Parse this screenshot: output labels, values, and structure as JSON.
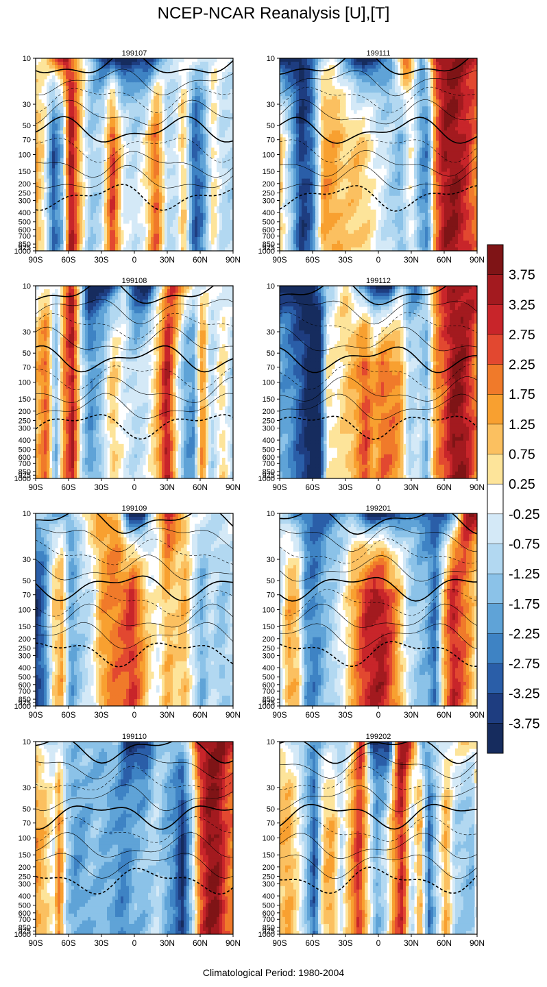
{
  "figure": {
    "title": "NCEP-NCAR Reanalysis [U],[T]",
    "footer": "Climatological Period: 1980-2004"
  },
  "chart_data": {
    "type": "heatmap",
    "variables": "[U] shaded anomaly, [T] contours",
    "x_ticks": [
      "90S",
      "60S",
      "30S",
      "0",
      "30N",
      "60N",
      "90N"
    ],
    "x_range": [
      -90,
      90
    ],
    "pressure_levels": [
      10,
      30,
      50,
      70,
      100,
      150,
      200,
      250,
      300,
      400,
      500,
      600,
      700,
      850,
      925,
      1000
    ],
    "colorbar": {
      "labels": [
        "3.75",
        "3.25",
        "2.75",
        "2.25",
        "1.75",
        "1.25",
        "0.75",
        "0.25",
        "-0.25",
        "-0.75",
        "-1.25",
        "-1.75",
        "-2.25",
        "-2.75",
        "-3.25",
        "-3.75"
      ],
      "colors": [
        "#7f1416",
        "#a31a1f",
        "#c8252a",
        "#e24830",
        "#f07a2a",
        "#f8a030",
        "#fbc060",
        "#fde49a",
        "#ffffff",
        "#d4e9f7",
        "#b2d8f1",
        "#8bc2e8",
        "#5fa3d7",
        "#3e83c4",
        "#2a5ea8",
        "#1e3d80",
        "#162c5e"
      ]
    },
    "panels": [
      {
        "label": "199107",
        "bands": [
          [
            -90,
            1.6
          ],
          [
            -82,
            0.4
          ],
          [
            -74,
            -2.8
          ],
          [
            -66,
            -1.4
          ],
          [
            -58,
            4.0
          ],
          [
            -48,
            0.8
          ],
          [
            -40,
            -1.0
          ],
          [
            -30,
            -0.6
          ],
          [
            -20,
            3.2
          ],
          [
            -10,
            0.0
          ],
          [
            0,
            -0.5
          ],
          [
            10,
            0.4
          ],
          [
            20,
            2.6
          ],
          [
            30,
            -0.6
          ],
          [
            38,
            -0.4
          ],
          [
            45,
            1.2
          ],
          [
            55,
            -3.0
          ],
          [
            63,
            -2.0
          ],
          [
            72,
            0.8
          ],
          [
            80,
            -0.6
          ],
          [
            90,
            -0.6
          ]
        ],
        "top": [
          [
            -90,
            0.0
          ],
          [
            -62,
            3.8
          ],
          [
            -45,
            0.0
          ],
          [
            -25,
            -4.0
          ],
          [
            -5,
            -4.0
          ],
          [
            12,
            -4.0
          ],
          [
            25,
            -1.5
          ],
          [
            40,
            0.0
          ],
          [
            90,
            0.0
          ]
        ]
      },
      {
        "label": "199111",
        "bands": [
          [
            -90,
            1.2
          ],
          [
            -80,
            -1.0
          ],
          [
            -70,
            -3.4
          ],
          [
            -60,
            -2.5
          ],
          [
            -50,
            1.8
          ],
          [
            -40,
            1.6
          ],
          [
            -30,
            1.0
          ],
          [
            -20,
            1.2
          ],
          [
            -10,
            0.8
          ],
          [
            0,
            0.0
          ],
          [
            10,
            -0.6
          ],
          [
            20,
            -1.4
          ],
          [
            30,
            0.4
          ],
          [
            38,
            -1.6
          ],
          [
            45,
            -2.2
          ],
          [
            52,
            2.2
          ],
          [
            60,
            3.8
          ],
          [
            70,
            4.0
          ],
          [
            80,
            3.2
          ],
          [
            90,
            2.0
          ]
        ],
        "top": [
          [
            -90,
            -4.0
          ],
          [
            -70,
            -4.0
          ],
          [
            -55,
            -1.0
          ],
          [
            -40,
            0.0
          ],
          [
            -20,
            -4.0
          ],
          [
            -5,
            -4.0
          ],
          [
            10,
            -2.0
          ],
          [
            25,
            3.0
          ],
          [
            40,
            -2.0
          ],
          [
            55,
            4.0
          ],
          [
            75,
            4.0
          ],
          [
            90,
            3.5
          ]
        ]
      },
      {
        "label": "199108",
        "bands": [
          [
            -90,
            1.2
          ],
          [
            -80,
            2.6
          ],
          [
            -72,
            -1.6
          ],
          [
            -64,
            2.0
          ],
          [
            -56,
            3.6
          ],
          [
            -48,
            -0.4
          ],
          [
            -40,
            -2.0
          ],
          [
            -30,
            -1.0
          ],
          [
            -20,
            1.2
          ],
          [
            -10,
            0.0
          ],
          [
            0,
            -0.6
          ],
          [
            10,
            -0.3
          ],
          [
            20,
            1.2
          ],
          [
            30,
            3.8
          ],
          [
            38,
            0.6
          ],
          [
            46,
            -1.6
          ],
          [
            54,
            -2.0
          ],
          [
            62,
            2.2
          ],
          [
            70,
            -0.8
          ],
          [
            80,
            0.8
          ],
          [
            90,
            -0.8
          ]
        ],
        "top": [
          [
            -90,
            0.0
          ],
          [
            -70,
            0.0
          ],
          [
            -58,
            4.0
          ],
          [
            -42,
            -4.0
          ],
          [
            -25,
            -4.0
          ],
          [
            -10,
            -0.5
          ],
          [
            0,
            -4.0
          ],
          [
            12,
            -4.0
          ],
          [
            25,
            0.0
          ],
          [
            35,
            3.8
          ],
          [
            45,
            1.5
          ],
          [
            60,
            0.0
          ],
          [
            90,
            0.0
          ]
        ]
      },
      {
        "label": "199112",
        "bands": [
          [
            -90,
            -1.6
          ],
          [
            -80,
            -2.0
          ],
          [
            -70,
            -3.0
          ],
          [
            -62,
            -4.0
          ],
          [
            -54,
            -4.0
          ],
          [
            -46,
            0.6
          ],
          [
            -38,
            0.4
          ],
          [
            -30,
            1.0
          ],
          [
            -20,
            1.6
          ],
          [
            -12,
            2.8
          ],
          [
            -4,
            1.6
          ],
          [
            4,
            2.4
          ],
          [
            12,
            2.2
          ],
          [
            20,
            1.8
          ],
          [
            28,
            -0.8
          ],
          [
            36,
            -0.4
          ],
          [
            44,
            -1.4
          ],
          [
            52,
            1.8
          ],
          [
            60,
            2.6
          ],
          [
            68,
            4.0
          ],
          [
            76,
            4.0
          ],
          [
            84,
            3.0
          ],
          [
            90,
            2.0
          ]
        ],
        "top": [
          [
            -90,
            -4.0
          ],
          [
            -60,
            -4.0
          ],
          [
            -45,
            -1.0
          ],
          [
            -30,
            1.0
          ],
          [
            -15,
            -2.0
          ],
          [
            -5,
            -4.0
          ],
          [
            10,
            -4.0
          ],
          [
            20,
            -1.0
          ],
          [
            35,
            -3.0
          ],
          [
            55,
            3.0
          ],
          [
            80,
            4.0
          ],
          [
            90,
            3.5
          ]
        ]
      },
      {
        "label": "199109",
        "bands": [
          [
            -90,
            -3.4
          ],
          [
            -82,
            -2.4
          ],
          [
            -74,
            0.8
          ],
          [
            -66,
            1.6
          ],
          [
            -58,
            -1.8
          ],
          [
            -50,
            -1.0
          ],
          [
            -40,
            -0.4
          ],
          [
            -30,
            1.6
          ],
          [
            -20,
            2.2
          ],
          [
            -10,
            2.4
          ],
          [
            -2,
            3.2
          ],
          [
            6,
            2.0
          ],
          [
            14,
            0.6
          ],
          [
            22,
            0.2
          ],
          [
            30,
            1.4
          ],
          [
            38,
            0.8
          ],
          [
            46,
            1.4
          ],
          [
            54,
            -0.4
          ],
          [
            62,
            -1.6
          ],
          [
            70,
            -0.4
          ],
          [
            80,
            -1.2
          ],
          [
            90,
            -0.4
          ]
        ],
        "top": [
          [
            -90,
            -0.5
          ],
          [
            -70,
            -1.5
          ],
          [
            -60,
            -2.0
          ],
          [
            -45,
            1.0
          ],
          [
            -30,
            2.0
          ],
          [
            -15,
            1.0
          ],
          [
            -5,
            -4.0
          ],
          [
            8,
            -4.0
          ],
          [
            15,
            -1.0
          ],
          [
            30,
            3.8
          ],
          [
            40,
            2.0
          ],
          [
            55,
            0.0
          ],
          [
            70,
            -0.5
          ],
          [
            90,
            0.0
          ]
        ]
      },
      {
        "label": "199201",
        "bands": [
          [
            -90,
            -0.4
          ],
          [
            -82,
            1.6
          ],
          [
            -74,
            1.2
          ],
          [
            -66,
            -1.8
          ],
          [
            -58,
            -2.2
          ],
          [
            -50,
            -1.4
          ],
          [
            -40,
            -0.6
          ],
          [
            -30,
            0.4
          ],
          [
            -20,
            2.0
          ],
          [
            -12,
            3.2
          ],
          [
            -4,
            3.6
          ],
          [
            4,
            3.6
          ],
          [
            12,
            2.6
          ],
          [
            20,
            1.2
          ],
          [
            28,
            -0.6
          ],
          [
            36,
            -1.0
          ],
          [
            44,
            -1.4
          ],
          [
            52,
            -2.6
          ],
          [
            60,
            1.6
          ],
          [
            68,
            3.4
          ],
          [
            76,
            2.6
          ],
          [
            84,
            1.6
          ],
          [
            90,
            0.4
          ]
        ],
        "top": [
          [
            -90,
            -0.5
          ],
          [
            -75,
            -2.0
          ],
          [
            -60,
            -3.0
          ],
          [
            -40,
            -2.5
          ],
          [
            -25,
            -1.0
          ],
          [
            -10,
            -4.0
          ],
          [
            0,
            -4.0
          ],
          [
            12,
            -4.0
          ],
          [
            25,
            -2.0
          ],
          [
            45,
            -2.5
          ],
          [
            60,
            -4.0
          ],
          [
            70,
            -1.0
          ],
          [
            80,
            4.0
          ],
          [
            90,
            4.0
          ]
        ]
      },
      {
        "label": "199110",
        "bands": [
          [
            -90,
            1.8
          ],
          [
            -82,
            1.2
          ],
          [
            -74,
            0.2
          ],
          [
            -68,
            2.4
          ],
          [
            -62,
            -0.8
          ],
          [
            -54,
            -1.8
          ],
          [
            -46,
            -1.6
          ],
          [
            -38,
            -1.2
          ],
          [
            -30,
            -1.4
          ],
          [
            -20,
            -1.6
          ],
          [
            -10,
            -2.2
          ],
          [
            0,
            -1.4
          ],
          [
            10,
            -1.2
          ],
          [
            20,
            -0.6
          ],
          [
            28,
            -1.4
          ],
          [
            36,
            -2.0
          ],
          [
            44,
            -3.6
          ],
          [
            52,
            -1.0
          ],
          [
            60,
            2.6
          ],
          [
            68,
            4.0
          ],
          [
            76,
            4.0
          ],
          [
            84,
            2.6
          ],
          [
            90,
            2.0
          ]
        ],
        "top": [
          [
            -90,
            0.5
          ],
          [
            -70,
            -1.0
          ],
          [
            -50,
            -1.0
          ],
          [
            -30,
            -1.5
          ],
          [
            -15,
            -1.0
          ],
          [
            -5,
            -4.0
          ],
          [
            10,
            -4.0
          ],
          [
            20,
            -1.0
          ],
          [
            40,
            -1.0
          ],
          [
            50,
            0.0
          ],
          [
            60,
            4.0
          ],
          [
            80,
            4.0
          ],
          [
            90,
            3.5
          ]
        ]
      },
      {
        "label": "199202",
        "bands": [
          [
            -90,
            1.2
          ],
          [
            -82,
            1.6
          ],
          [
            -74,
            0.6
          ],
          [
            -66,
            -1.0
          ],
          [
            -58,
            -3.0
          ],
          [
            -50,
            1.2
          ],
          [
            -42,
            1.6
          ],
          [
            -34,
            -0.4
          ],
          [
            -26,
            1.4
          ],
          [
            -18,
            3.2
          ],
          [
            -10,
            0.8
          ],
          [
            -2,
            -1.6
          ],
          [
            6,
            -0.6
          ],
          [
            14,
            1.8
          ],
          [
            22,
            3.4
          ],
          [
            30,
            -0.6
          ],
          [
            38,
            1.6
          ],
          [
            46,
            -2.6
          ],
          [
            54,
            -0.4
          ],
          [
            62,
            1.6
          ],
          [
            70,
            -0.8
          ],
          [
            78,
            -1.0
          ],
          [
            86,
            -1.4
          ],
          [
            90,
            0.6
          ]
        ],
        "top": [
          [
            -90,
            0.5
          ],
          [
            -75,
            -1.0
          ],
          [
            -55,
            -1.5
          ],
          [
            -40,
            -1.0
          ],
          [
            -25,
            -0.5
          ],
          [
            -15,
            4.0
          ],
          [
            -5,
            -4.0
          ],
          [
            10,
            -4.0
          ],
          [
            18,
            4.0
          ],
          [
            28,
            4.0
          ],
          [
            40,
            -2.0
          ],
          [
            60,
            0.0
          ],
          [
            80,
            1.0
          ],
          [
            90,
            1.0
          ]
        ]
      }
    ]
  }
}
